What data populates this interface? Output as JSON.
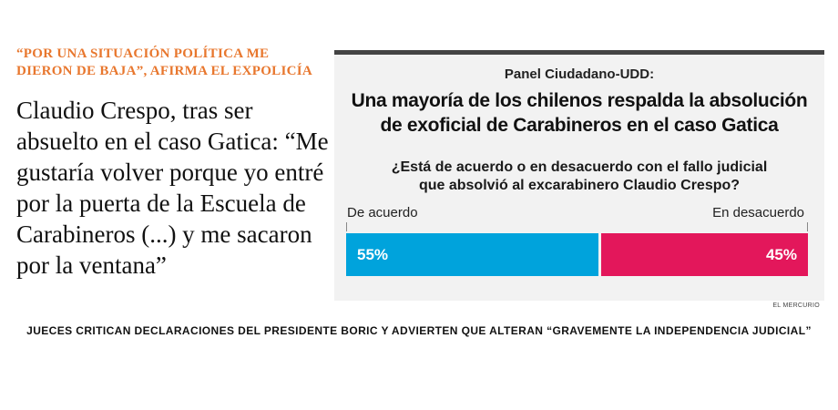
{
  "article": {
    "kicker": "“POR UNA SITUACIÓN POLÍTICA ME DIERON DE BAJA”, AFIRMA EL EXPOLICÍA",
    "headline": "Claudio Crespo, tras ser absuelto en el caso Gatica: “Me gustaría volver porque yo entré por la puerta de la Escuela de Carabineros (...) y me sacaron por la ventana”"
  },
  "panel": {
    "source": "Panel Ciudadano-UDD:",
    "title_line1": "Una mayoría de los chilenos respalda la absolución",
    "title_line2": "de exoficial de Carabineros en el caso Gatica",
    "question_line1": "¿Está de acuerdo o en desacuerdo con el fallo judicial",
    "question_line2": "que absolvió al excarabinero Claudio Crespo?",
    "label_agree": "De acuerdo",
    "label_disagree": "En desacuerdo",
    "agree_text": "55%",
    "disagree_text": "45%",
    "colors": {
      "agree": "#00a3dc",
      "disagree": "#e3175b"
    }
  },
  "chart_data": {
    "type": "bar",
    "categories": [
      "De acuerdo",
      "En desacuerdo"
    ],
    "values": [
      55,
      45
    ],
    "unit": "%",
    "title": "Una mayoría de los chilenos respalda la absolución de exoficial de Carabineros en el caso Gatica",
    "subtitle": "¿Está de acuerdo o en desacuerdo con el fallo judicial que absolvió al excarabinero Claudio Crespo?"
  },
  "credit": "EL MERCURIO",
  "bottom_headline": "JUECES CRITICAN DECLARACIONES DEL PRESIDENTE BORIC Y ADVIERTEN QUE ALTERAN “GRAVEMENTE LA INDEPENDENCIA JUDICIAL”"
}
